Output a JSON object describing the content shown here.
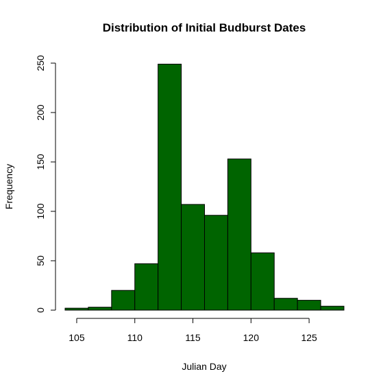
{
  "chart_data": {
    "type": "bar",
    "subtype": "histogram",
    "title": "Distribution of Initial Budburst Dates",
    "xlabel": "Julian Day",
    "ylabel": "Frequency",
    "bin_edges": [
      104,
      106,
      108,
      110,
      112,
      114,
      116,
      118,
      120,
      122,
      124,
      126,
      128
    ],
    "values": [
      2,
      3,
      20,
      47,
      249,
      107,
      96,
      153,
      58,
      12,
      10,
      4
    ],
    "xlim": [
      104,
      128
    ],
    "ylim": [
      0,
      250
    ],
    "x_ticks": [
      105,
      110,
      115,
      120,
      125
    ],
    "y_ticks": [
      0,
      50,
      100,
      150,
      200,
      250
    ],
    "bar_color": "#006400",
    "grid": false,
    "legend": "none"
  }
}
